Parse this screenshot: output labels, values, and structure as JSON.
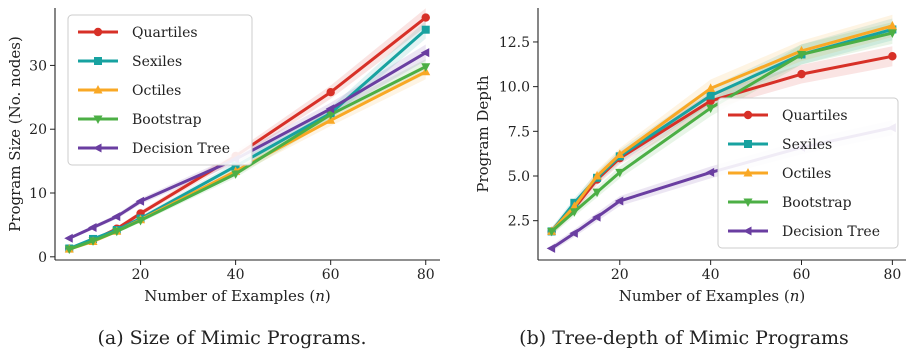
{
  "captions": [
    "(a) Size of Mimic Programs.",
    "(b) Tree-depth of Mimic Programs"
  ],
  "chart_data": [
    {
      "type": "line",
      "xlabel": "Number of Examples (n)",
      "ylabel": "Program Size (No. nodes)",
      "xlim": [
        2,
        83
      ],
      "ylim": [
        -0.5,
        39
      ],
      "xticks": [
        20,
        40,
        60,
        80
      ],
      "yticks": [
        0,
        10,
        20,
        30
      ],
      "legend_position": "top-left",
      "series": [
        {
          "name": "Quartiles",
          "color": "#d73027",
          "marker": "circle",
          "x": [
            5,
            10,
            15,
            20,
            40,
            60,
            80
          ],
          "y": [
            1.3,
            2.6,
            4.4,
            6.8,
            15.8,
            25.8,
            37.5
          ]
        },
        {
          "name": "Sexiles",
          "color": "#17a2a0",
          "marker": "square",
          "x": [
            5,
            10,
            15,
            20,
            40,
            60,
            80
          ],
          "y": [
            1.3,
            2.8,
            4.2,
            6.0,
            14.2,
            22.5,
            35.6
          ]
        },
        {
          "name": "Octiles",
          "color": "#f9a825",
          "marker": "triangle-up",
          "x": [
            5,
            10,
            15,
            20,
            40,
            60,
            80
          ],
          "y": [
            1.2,
            2.4,
            4.0,
            5.8,
            13.4,
            21.4,
            29.0
          ]
        },
        {
          "name": "Bootstrap",
          "color": "#4caf45",
          "marker": "triangle-down",
          "x": [
            5,
            10,
            15,
            20,
            40,
            60,
            80
          ],
          "y": [
            1.2,
            2.5,
            4.0,
            5.7,
            13.0,
            22.3,
            29.8
          ]
        },
        {
          "name": "Decision Tree",
          "color": "#6a3ea1",
          "marker": "triangle-left",
          "x": [
            5,
            10,
            15,
            20,
            40,
            60,
            80
          ],
          "y": [
            2.9,
            4.6,
            6.3,
            8.7,
            15.3,
            23.2,
            32.0
          ]
        }
      ]
    },
    {
      "type": "line",
      "xlabel": "Number of Examples (n)",
      "ylabel": "Program Depth",
      "xlim": [
        2,
        83
      ],
      "ylim": [
        0.3,
        14.4
      ],
      "xticks": [
        20,
        40,
        60,
        80
      ],
      "yticks": [
        2.5,
        5.0,
        7.5,
        10.0,
        12.5
      ],
      "ytick_labels": [
        "2.5",
        "5.0",
        "7.5",
        "10.0",
        "12.5"
      ],
      "legend_position": "lower-right",
      "series": [
        {
          "name": "Quartiles",
          "color": "#d73027",
          "marker": "circle",
          "x": [
            5,
            10,
            15,
            20,
            40,
            60,
            80
          ],
          "y": [
            1.9,
            3.2,
            4.8,
            6.0,
            9.2,
            10.7,
            11.7
          ]
        },
        {
          "name": "Sexiles",
          "color": "#17a2a0",
          "marker": "square",
          "x": [
            5,
            10,
            15,
            20,
            40,
            60,
            80
          ],
          "y": [
            1.9,
            3.5,
            4.9,
            6.1,
            9.5,
            11.8,
            13.2
          ]
        },
        {
          "name": "Octiles",
          "color": "#f9a825",
          "marker": "triangle-up",
          "x": [
            5,
            10,
            15,
            20,
            40,
            60,
            80
          ],
          "y": [
            1.9,
            3.3,
            5.0,
            6.2,
            9.9,
            12.0,
            13.4
          ]
        },
        {
          "name": "Bootstrap",
          "color": "#4caf45",
          "marker": "triangle-down",
          "x": [
            5,
            10,
            15,
            20,
            40,
            60,
            80
          ],
          "y": [
            1.9,
            3.0,
            4.1,
            5.2,
            8.8,
            11.8,
            13.0
          ]
        },
        {
          "name": "Decision Tree",
          "color": "#6a3ea1",
          "marker": "triangle-left",
          "x": [
            5,
            10,
            15,
            20,
            40,
            60,
            80
          ],
          "y": [
            0.95,
            1.8,
            2.7,
            3.6,
            5.2,
            6.6,
            7.7
          ]
        }
      ]
    }
  ]
}
